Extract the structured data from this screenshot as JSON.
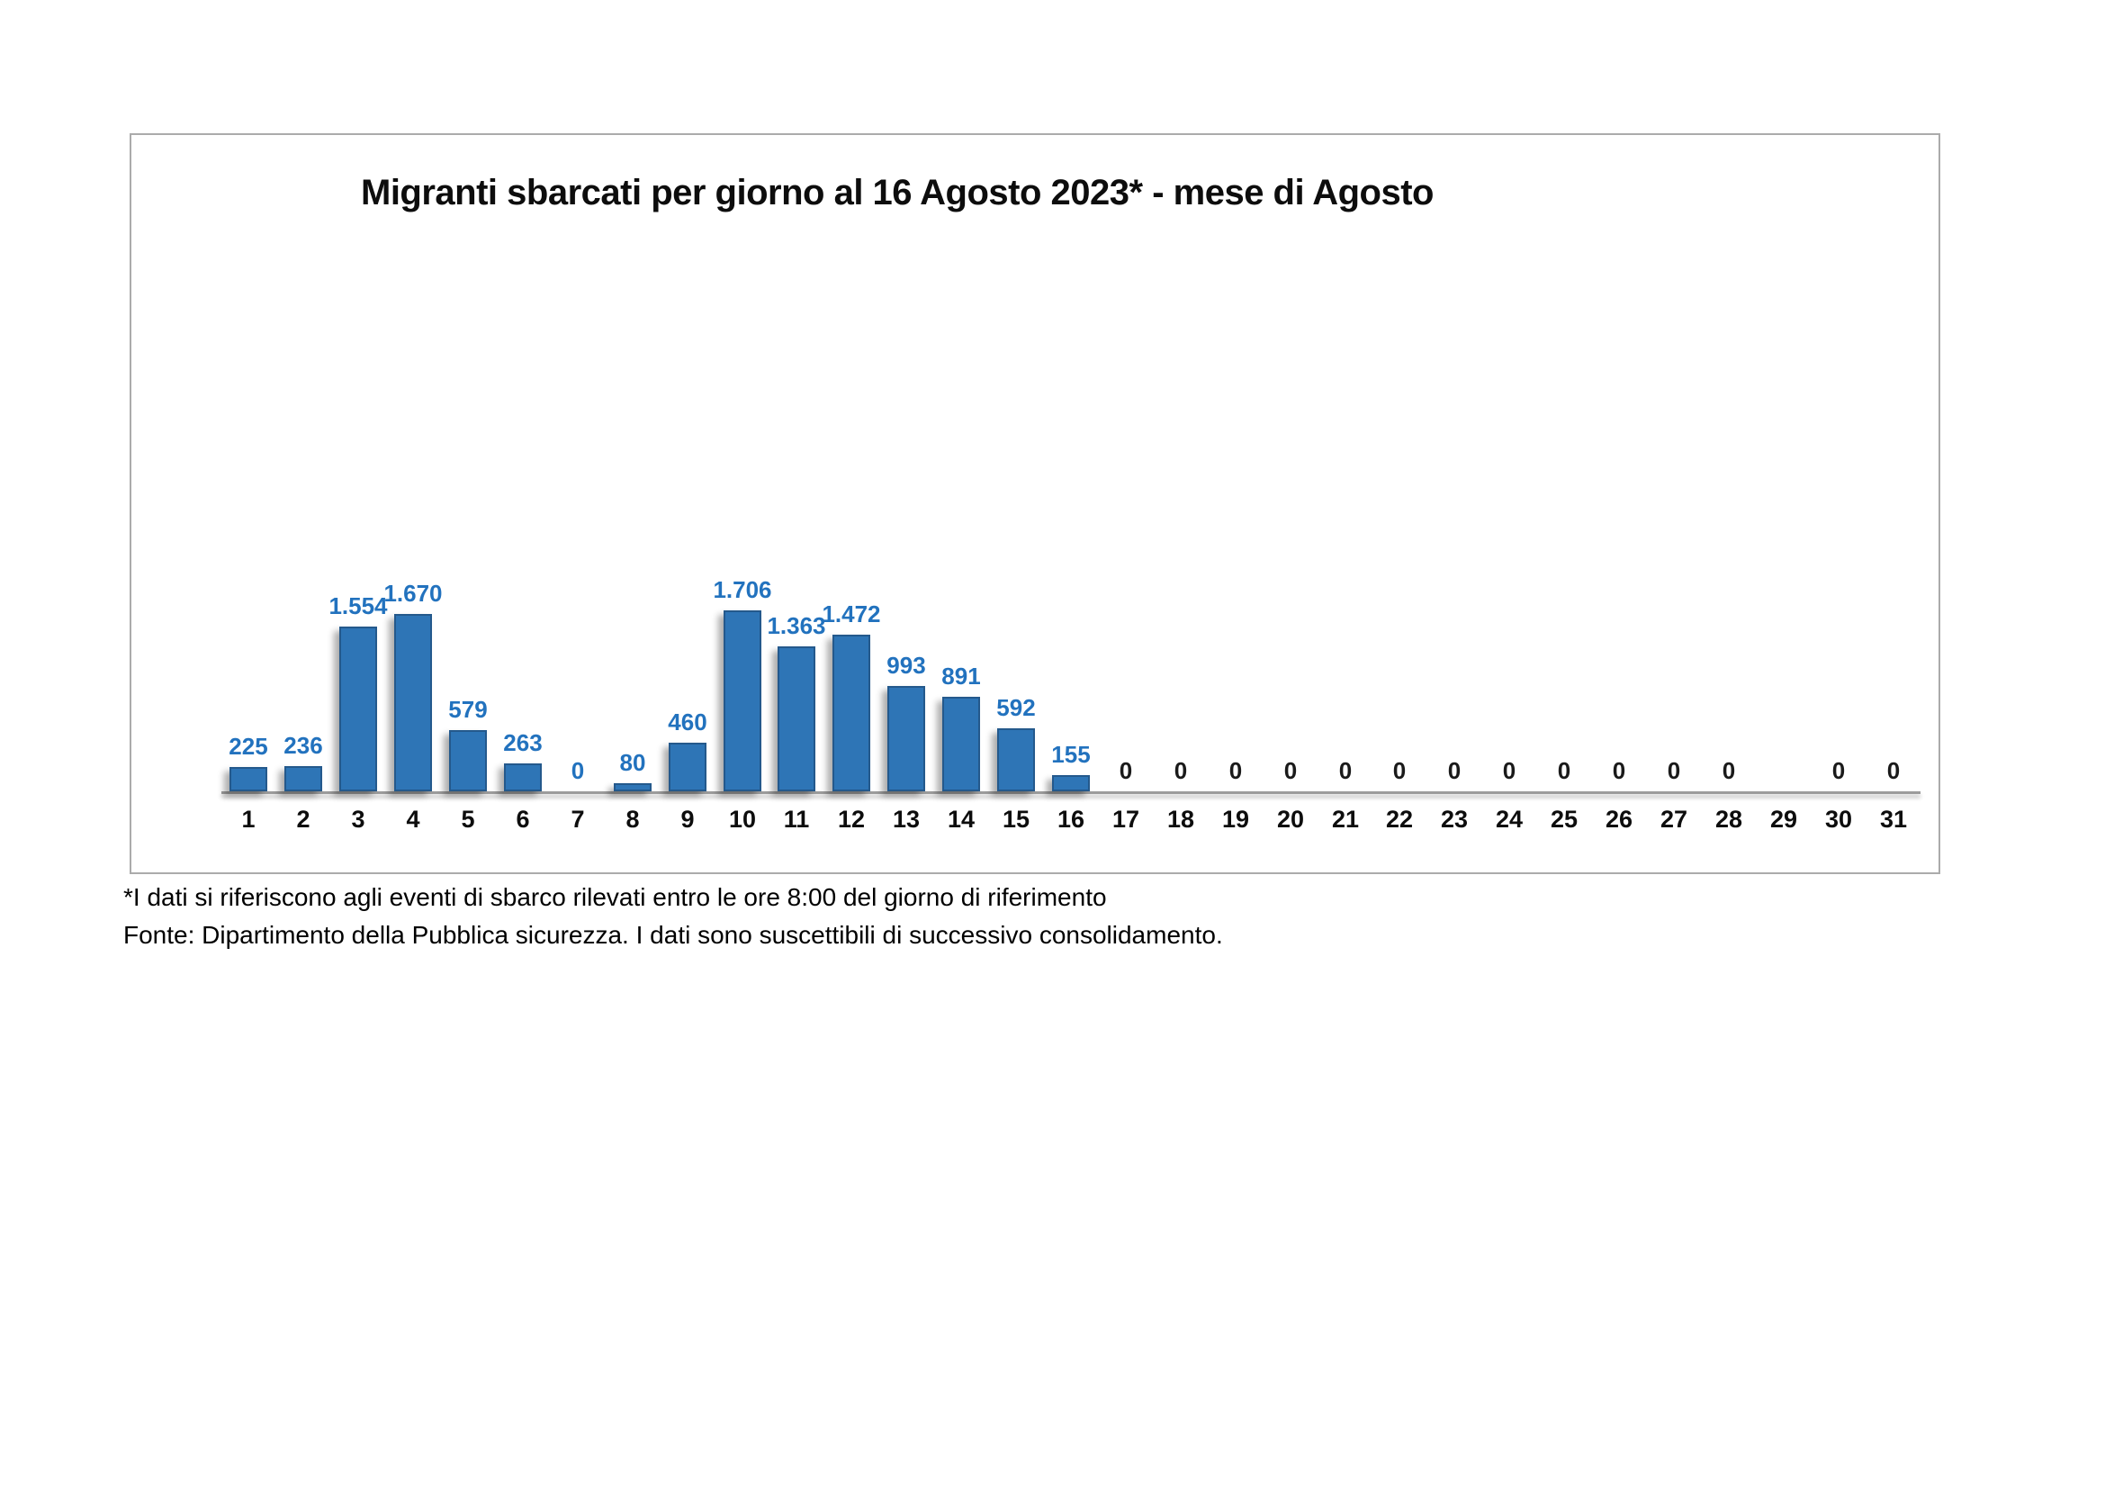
{
  "chart_data": {
    "type": "bar",
    "title": "Migranti sbarcati per giorno al 16 Agosto 2023* - mese di Agosto",
    "xlabel": "",
    "ylabel": "",
    "grid": false,
    "legend": false,
    "categories": [
      "1",
      "2",
      "3",
      "4",
      "5",
      "6",
      "7",
      "8",
      "9",
      "10",
      "11",
      "12",
      "13",
      "14",
      "15",
      "16",
      "17",
      "18",
      "19",
      "20",
      "21",
      "22",
      "23",
      "24",
      "25",
      "26",
      "27",
      "28",
      "29",
      "30",
      "31"
    ],
    "values": [
      225,
      236,
      1554,
      1670,
      579,
      263,
      0,
      80,
      460,
      1706,
      1363,
      1472,
      993,
      891,
      592,
      155,
      0,
      0,
      0,
      0,
      0,
      0,
      0,
      0,
      0,
      0,
      0,
      0,
      null,
      0,
      0
    ],
    "value_labels": [
      "225",
      "236",
      "1.554",
      "1.670",
      "579",
      "263",
      "0",
      "80",
      "460",
      "1.706",
      "1.363",
      "1.472",
      "993",
      "891",
      "592",
      "155",
      "0",
      "0",
      "0",
      "0",
      "0",
      "0",
      "0",
      "0",
      "0",
      "0",
      "0",
      "0",
      null,
      "0",
      "0"
    ],
    "label_styles": [
      "primary",
      "primary",
      "primary",
      "primary",
      "primary",
      "primary",
      "primary",
      "primary",
      "primary",
      "primary",
      "primary",
      "primary",
      "primary",
      "primary",
      "primary",
      "primary",
      "secondary",
      "secondary",
      "secondary",
      "secondary",
      "secondary",
      "secondary",
      "secondary",
      "secondary",
      "secondary",
      "secondary",
      "secondary",
      "secondary",
      null,
      "secondary",
      "secondary"
    ],
    "colors": {
      "bar_fill": "#2e75b6",
      "bar_border": "#24598c",
      "value_label_primary": "#2272be",
      "value_label_secondary": "#1a1a1a",
      "axis_line": "#9c9c9c",
      "frame_border": "#ababab"
    }
  },
  "footnotes": [
    "*I dati si riferiscono agli eventi di sbarco rilevati entro le ore 8:00 del giorno di riferimento",
    "Fonte: Dipartimento della Pubblica sicurezza. I dati sono suscettibili di successivo consolidamento."
  ]
}
